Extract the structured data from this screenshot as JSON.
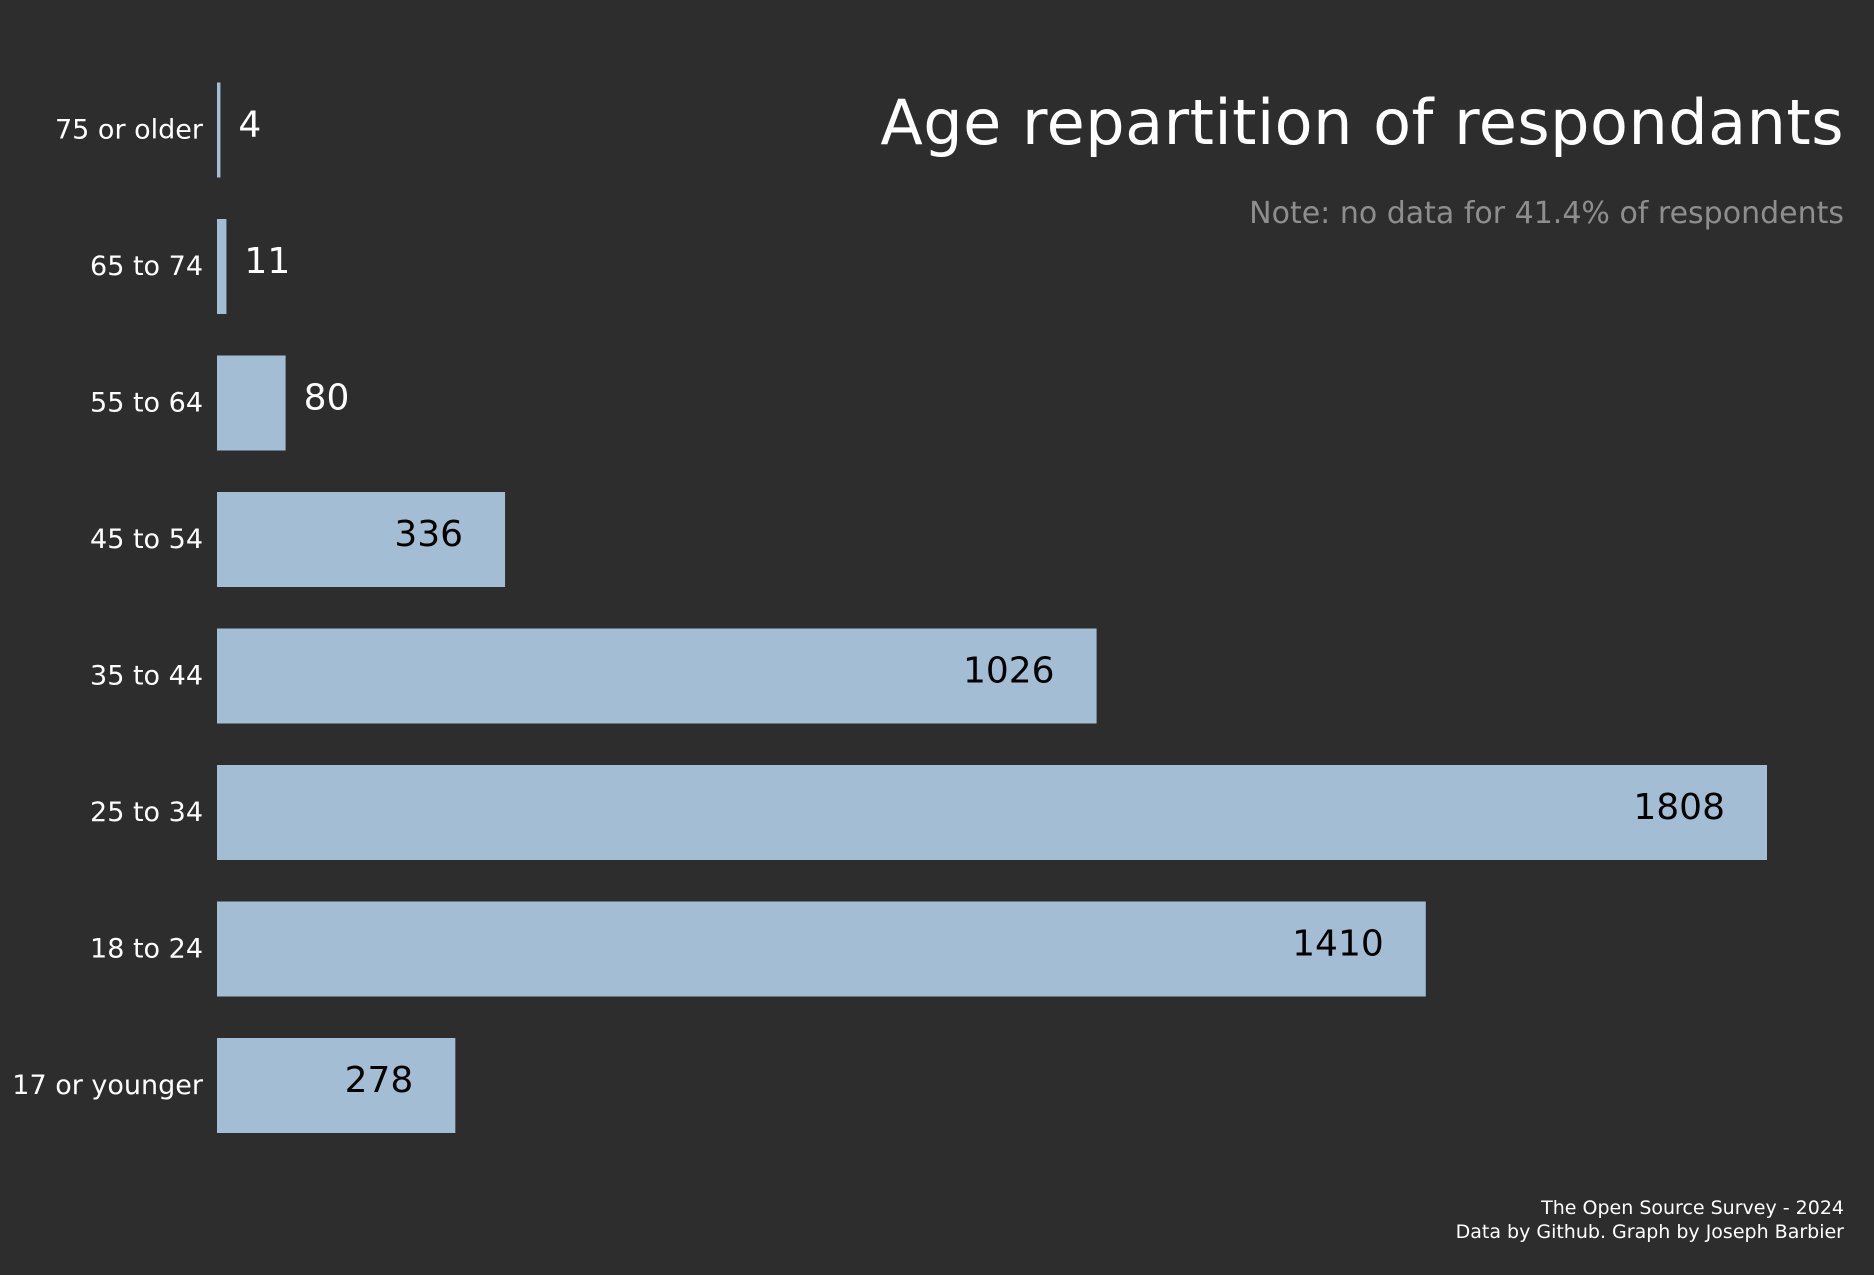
{
  "chart_data": {
    "type": "bar",
    "orientation": "horizontal",
    "title": "Age repartition of respondants",
    "subtitle": "Note: no data for 41.4% of respondents",
    "categories": [
      "75 or older",
      "65 to 74",
      "55 to 64",
      "45 to 54",
      "35 to 44",
      "25 to 34",
      "18 to 24",
      "17 or younger"
    ],
    "values": [
      4,
      11,
      80,
      336,
      1026,
      1808,
      1410,
      278
    ],
    "xlabel": "",
    "ylabel": "",
    "xlim": [
      0,
      1808
    ],
    "grid": false,
    "legend": "none",
    "colors": {
      "background": "#2e2d2e",
      "bar": "#a3bdd5",
      "label_inside": "#000000",
      "label_outside": "#ffffff",
      "subtitle": "#8f8e8f"
    }
  },
  "footer": {
    "line1": "The Open Source Survey - 2024",
    "line2": "Data by Github. Graph by Joseph Barbier"
  }
}
